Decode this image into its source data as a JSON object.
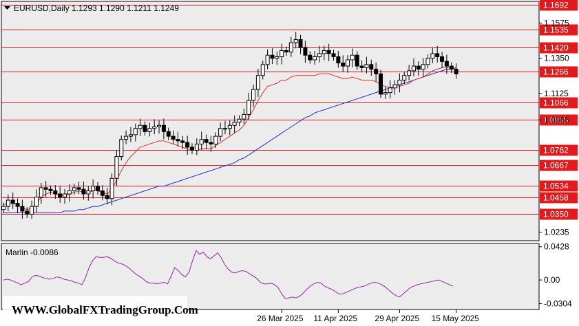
{
  "chart_data": [
    {
      "type": "candlestick",
      "title": "EURUSD,Daily",
      "ohlc_label": "1.1293 1.1290 1.1211 1.1249",
      "ylim": [
        1.018,
        1.1715
      ],
      "y_ticks": [
        "1.1575",
        "1.1350",
        "1.1125",
        "1.0955",
        "1.0235"
      ],
      "x_ticks": [
        {
          "label": "26 Mar 2025",
          "index": 59
        },
        {
          "label": "11 Apr 2025",
          "index": 71
        },
        {
          "label": "29 Apr 2025",
          "index": 84
        },
        {
          "label": "15 May 2025",
          "index": 96
        }
      ],
      "levels": [
        {
          "label": "1.1692",
          "value": 1.1692
        },
        {
          "label": "1.1535",
          "value": 1.1535
        },
        {
          "label": "1.1420",
          "value": 1.142
        },
        {
          "label": "1.1266",
          "value": 1.1266
        },
        {
          "label": "1.1066",
          "value": 1.1066
        },
        {
          "label": "1.0955",
          "value": 1.0955
        },
        {
          "label": "1.0762",
          "value": 1.0762
        },
        {
          "label": "1.0667",
          "value": 1.0667
        },
        {
          "label": "1.0534",
          "value": 1.0534
        },
        {
          "label": "1.0458",
          "value": 1.0458
        },
        {
          "label": "1.0350",
          "value": 1.035
        }
      ],
      "close_series": [
        1.04,
        1.044,
        1.042,
        1.04,
        1.037,
        1.035,
        1.04,
        1.046,
        1.052,
        1.051,
        1.05,
        1.048,
        1.046,
        1.048,
        1.05,
        1.052,
        1.051,
        1.048,
        1.05,
        1.053,
        1.05,
        1.047,
        1.045,
        1.058,
        1.072,
        1.083,
        1.085,
        1.086,
        1.09,
        1.092,
        1.088,
        1.09,
        1.091,
        1.092,
        1.088,
        1.085,
        1.083,
        1.082,
        1.081,
        1.078,
        1.076,
        1.08,
        1.083,
        1.081,
        1.08,
        1.085,
        1.09,
        1.09,
        1.092,
        1.094,
        1.096,
        1.099,
        1.108,
        1.115,
        1.124,
        1.131,
        1.137,
        1.135,
        1.136,
        1.14,
        1.139,
        1.145,
        1.147,
        1.142,
        1.137,
        1.134,
        1.136,
        1.138,
        1.14,
        1.138,
        1.136,
        1.132,
        1.13,
        1.134,
        1.137,
        1.13,
        1.129,
        1.131,
        1.128,
        1.125,
        1.112,
        1.113,
        1.116,
        1.118,
        1.121,
        1.124,
        1.127,
        1.13,
        1.128,
        1.131,
        1.135,
        1.138,
        1.136,
        1.133,
        1.13,
        1.128,
        1.125
      ],
      "red_ma": [
        1.041,
        1.042,
        1.042,
        1.041,
        1.039,
        1.038,
        1.039,
        1.042,
        1.046,
        1.048,
        1.049,
        1.048,
        1.047,
        1.047,
        1.048,
        1.049,
        1.05,
        1.049,
        1.049,
        1.05,
        1.05,
        1.049,
        1.048,
        1.051,
        1.057,
        1.063,
        1.068,
        1.072,
        1.075,
        1.078,
        1.079,
        1.08,
        1.081,
        1.082,
        1.082,
        1.081,
        1.08,
        1.079,
        1.078,
        1.077,
        1.076,
        1.076,
        1.077,
        1.077,
        1.077,
        1.079,
        1.081,
        1.083,
        1.085,
        1.087,
        1.089,
        1.092,
        1.097,
        1.102,
        1.108,
        1.113,
        1.117,
        1.118,
        1.119,
        1.121,
        1.121,
        1.123,
        1.124,
        1.124,
        1.124,
        1.124,
        1.124,
        1.125,
        1.125,
        1.125,
        1.124,
        1.123,
        1.122,
        1.122,
        1.123,
        1.122,
        1.121,
        1.121,
        1.121,
        1.12,
        1.118,
        1.117,
        1.116,
        1.116,
        1.117,
        1.118,
        1.119,
        1.121,
        1.122,
        1.123,
        1.125,
        1.127,
        1.128,
        1.129,
        1.129,
        1.129,
        1.128
      ],
      "blue_ma": [
        1.036,
        1.036,
        1.036,
        1.036,
        1.036,
        1.036,
        1.036,
        1.036,
        1.036,
        1.036,
        1.036,
        1.036,
        1.036,
        1.037,
        1.037,
        1.037,
        1.038,
        1.038,
        1.039,
        1.04,
        1.04,
        1.041,
        1.042,
        1.043,
        1.044,
        1.045,
        1.046,
        1.047,
        1.048,
        1.049,
        1.05,
        1.051,
        1.052,
        1.053,
        1.053,
        1.054,
        1.055,
        1.056,
        1.057,
        1.058,
        1.059,
        1.06,
        1.061,
        1.062,
        1.063,
        1.064,
        1.065,
        1.066,
        1.067,
        1.068,
        1.07,
        1.071,
        1.073,
        1.075,
        1.077,
        1.079,
        1.081,
        1.083,
        1.085,
        1.087,
        1.089,
        1.091,
        1.093,
        1.095,
        1.097,
        1.098,
        1.1,
        1.101,
        1.102,
        1.103,
        1.104,
        1.105,
        1.106,
        1.107,
        1.108,
        1.109,
        1.11,
        1.111,
        1.112,
        1.113,
        1.114,
        1.115,
        1.116,
        1.117,
        1.118,
        1.119,
        1.12,
        1.121,
        1.122,
        1.123,
        1.124,
        1.125,
        1.126,
        1.127,
        1.128,
        1.128,
        1.129
      ]
    },
    {
      "type": "line",
      "title": "Marlin -0.0086",
      "ylim": [
        -0.038,
        0.047
      ],
      "y_ticks": [
        "0.0428",
        "0.00",
        "-0.0304"
      ],
      "values": [
        0.0,
        0.001,
        0.0,
        -0.002,
        -0.004,
        -0.006,
        -0.004,
        -0.002,
        0.004,
        0.006,
        0.005,
        0.003,
        0.002,
        0.001,
        0.002,
        0.004,
        0.003,
        0.001,
        0.0,
        -0.001,
        -0.003,
        -0.004,
        -0.006,
        0.003,
        0.016,
        0.025,
        0.03,
        0.029,
        0.029,
        0.03,
        0.028,
        0.025,
        0.022,
        0.021,
        0.019,
        0.016,
        0.012,
        0.008,
        0.005,
        0.002,
        -0.002,
        -0.004,
        -0.004,
        -0.005,
        -0.004,
        -0.003,
        -0.005,
        0.005,
        0.016,
        0.012,
        0.007,
        0.004,
        0.01,
        0.025,
        0.038,
        0.033,
        0.036,
        0.03,
        0.027,
        0.031,
        0.035,
        0.029,
        0.02,
        0.014,
        0.01,
        0.009,
        0.011,
        0.012,
        0.011,
        0.008,
        0.005,
        0.002,
        -0.003,
        -0.005,
        -0.005,
        -0.004,
        -0.006,
        -0.01,
        -0.018,
        -0.024,
        -0.023,
        -0.022,
        -0.023,
        -0.021,
        -0.017,
        -0.012,
        -0.008,
        -0.005,
        -0.003,
        -0.004,
        -0.008,
        -0.01,
        -0.012,
        -0.015,
        -0.018,
        -0.018,
        -0.016,
        -0.014,
        -0.012,
        -0.01,
        -0.009,
        -0.008,
        -0.006,
        -0.004,
        -0.003,
        -0.004,
        -0.006,
        -0.009,
        -0.013,
        -0.017,
        -0.02,
        -0.022,
        -0.018,
        -0.014,
        -0.01,
        -0.008,
        -0.006,
        -0.005,
        -0.004,
        -0.003,
        -0.002,
        -0.001,
        0.0,
        -0.002,
        -0.004,
        -0.006,
        -0.008
      ]
    }
  ],
  "watermark": "WWW.GlobalFXTradingGroup.Com",
  "colors": {
    "background": "#ffffff",
    "plot_bg": "#ececec",
    "level_line": "#e31a1c",
    "level_label_bg": "#e31a1c",
    "red_ma": "#e0302a",
    "blue_ma": "#1f2fd6",
    "oscillator": "#9b1fb0",
    "candle_up": "#ffffff",
    "candle_down": "#000000"
  }
}
